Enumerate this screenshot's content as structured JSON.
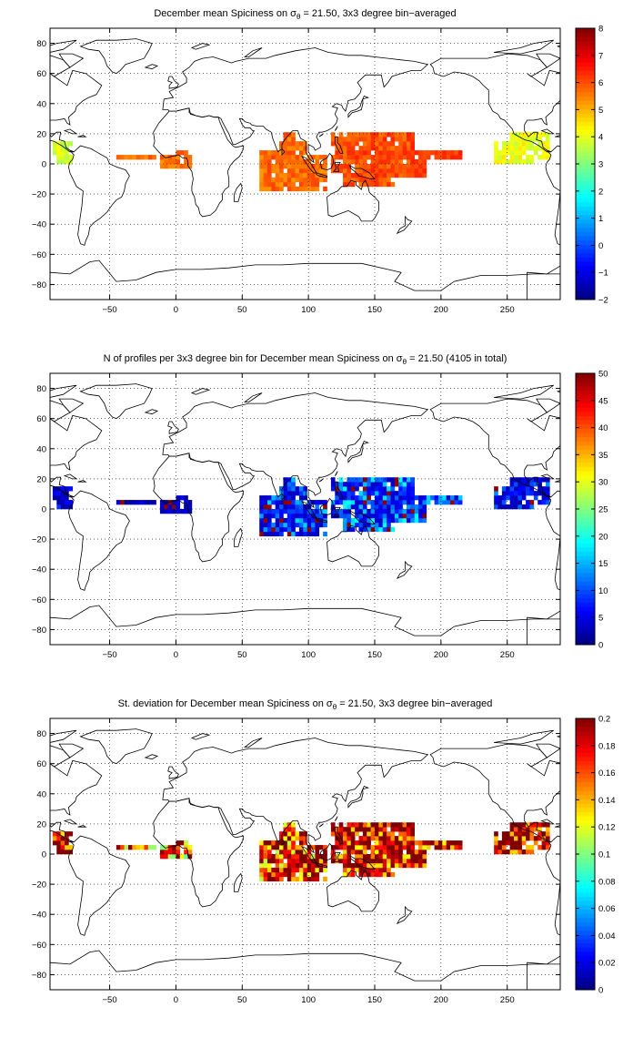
{
  "panels": [
    {
      "title_pre": "December mean Spiciness on ",
      "title_post": " = 21.50, 3x3 degree bin−averaged",
      "colorbar": {
        "min": -2,
        "max": 8,
        "ticks": [
          -2,
          -1,
          0,
          1,
          2,
          3,
          4,
          5,
          6,
          7,
          8
        ]
      }
    },
    {
      "title_pre": "N of profiles per 3x3 degree bin for December mean Spiciness on ",
      "title_post": " = 21.50 (4105 in total)",
      "colorbar": {
        "min": 0,
        "max": 50,
        "ticks": [
          0,
          5,
          10,
          15,
          20,
          25,
          30,
          35,
          40,
          45,
          50
        ]
      }
    },
    {
      "title_pre": "St. deviation for December mean Spiciness on ",
      "title_post": " = 21.50, 3x3 degree bin−averaged",
      "colorbar": {
        "min": 0,
        "max": 0.2,
        "ticks": [
          0,
          0.02,
          0.04,
          0.06,
          0.08,
          0.1,
          0.12,
          0.14,
          0.16,
          0.18,
          0.2
        ]
      }
    }
  ],
  "sigma_symbol": "σ",
  "sigma_sub": "θ",
  "xticks": [
    -50,
    0,
    50,
    100,
    150,
    200,
    250
  ],
  "yticks": [
    -80,
    -60,
    -40,
    -20,
    0,
    20,
    40,
    60,
    80
  ],
  "chart_data": [
    {
      "type": "heatmap",
      "title": "December mean Spiciness on σθ = 21.50, 3x3 degree bin−averaged",
      "xlim": [
        -95,
        290
      ],
      "ylim": [
        -90,
        90
      ],
      "grid": true,
      "colormap": "jet",
      "clim": [
        -2,
        8
      ],
      "regions": [
        {
          "name": "eastern tropical Pacific near Central America",
          "lon": [
            -93,
            -78
          ],
          "lat": [
            0,
            15
          ],
          "value": 3.9
        },
        {
          "name": "tropical Atlantic",
          "lon": [
            -45,
            12
          ],
          "lat": [
            -3,
            9
          ],
          "value": 5.6
        },
        {
          "name": "Indian Ocean",
          "lon": [
            62,
            115
          ],
          "lat": [
            -18,
            20
          ],
          "value": 5.7
        },
        {
          "name": "western tropical Pacific",
          "lon": [
            118,
            215
          ],
          "lat": [
            -16,
            21
          ],
          "value": 6.0
        },
        {
          "name": "central-east tropical Pacific",
          "lon": [
            240,
            283
          ],
          "lat": [
            0,
            20
          ],
          "value": 4.1
        }
      ]
    },
    {
      "type": "heatmap",
      "title": "N of profiles per 3x3 degree bin for December mean Spiciness on σθ = 21.50 (4105 in total)",
      "xlim": [
        -95,
        290
      ],
      "ylim": [
        -90,
        90
      ],
      "grid": true,
      "colormap": "jet",
      "clim": [
        0,
        50
      ],
      "total_profiles": 4105,
      "regions": [
        {
          "name": "eastern tropical Pacific near Central America",
          "lon": [
            -93,
            -78
          ],
          "lat": [
            0,
            15
          ],
          "value": 6
        },
        {
          "name": "tropical Atlantic",
          "lon": [
            -45,
            12
          ],
          "lat": [
            -3,
            9
          ],
          "value": 4
        },
        {
          "name": "Indian Ocean",
          "lon": [
            62,
            115
          ],
          "lat": [
            -18,
            20
          ],
          "value": 10
        },
        {
          "name": "western tropical Pacific",
          "lon": [
            118,
            215
          ],
          "lat": [
            -16,
            21
          ],
          "value": 12
        },
        {
          "name": "central-east tropical Pacific",
          "lon": [
            240,
            283
          ],
          "lat": [
            0,
            20
          ],
          "value": 8
        }
      ]
    },
    {
      "type": "heatmap",
      "title": "St. deviation for December mean Spiciness on σθ = 21.50, 3x3 degree bin−averaged",
      "xlim": [
        -95,
        290
      ],
      "ylim": [
        -90,
        90
      ],
      "grid": true,
      "colormap": "jet",
      "clim": [
        0,
        0.2
      ],
      "regions": [
        {
          "name": "eastern tropical Pacific near Central America",
          "lon": [
            -93,
            -78
          ],
          "lat": [
            0,
            15
          ],
          "value": 0.19
        },
        {
          "name": "tropical Atlantic",
          "lon": [
            -45,
            12
          ],
          "lat": [
            -3,
            9
          ],
          "value": 0.15
        },
        {
          "name": "Indian Ocean",
          "lon": [
            62,
            115
          ],
          "lat": [
            -18,
            20
          ],
          "value": 0.17
        },
        {
          "name": "western tropical Pacific",
          "lon": [
            118,
            215
          ],
          "lat": [
            -16,
            21
          ],
          "value": 0.18
        },
        {
          "name": "central-east tropical Pacific",
          "lon": [
            240,
            283
          ],
          "lat": [
            0,
            20
          ],
          "value": 0.19
        }
      ]
    }
  ]
}
